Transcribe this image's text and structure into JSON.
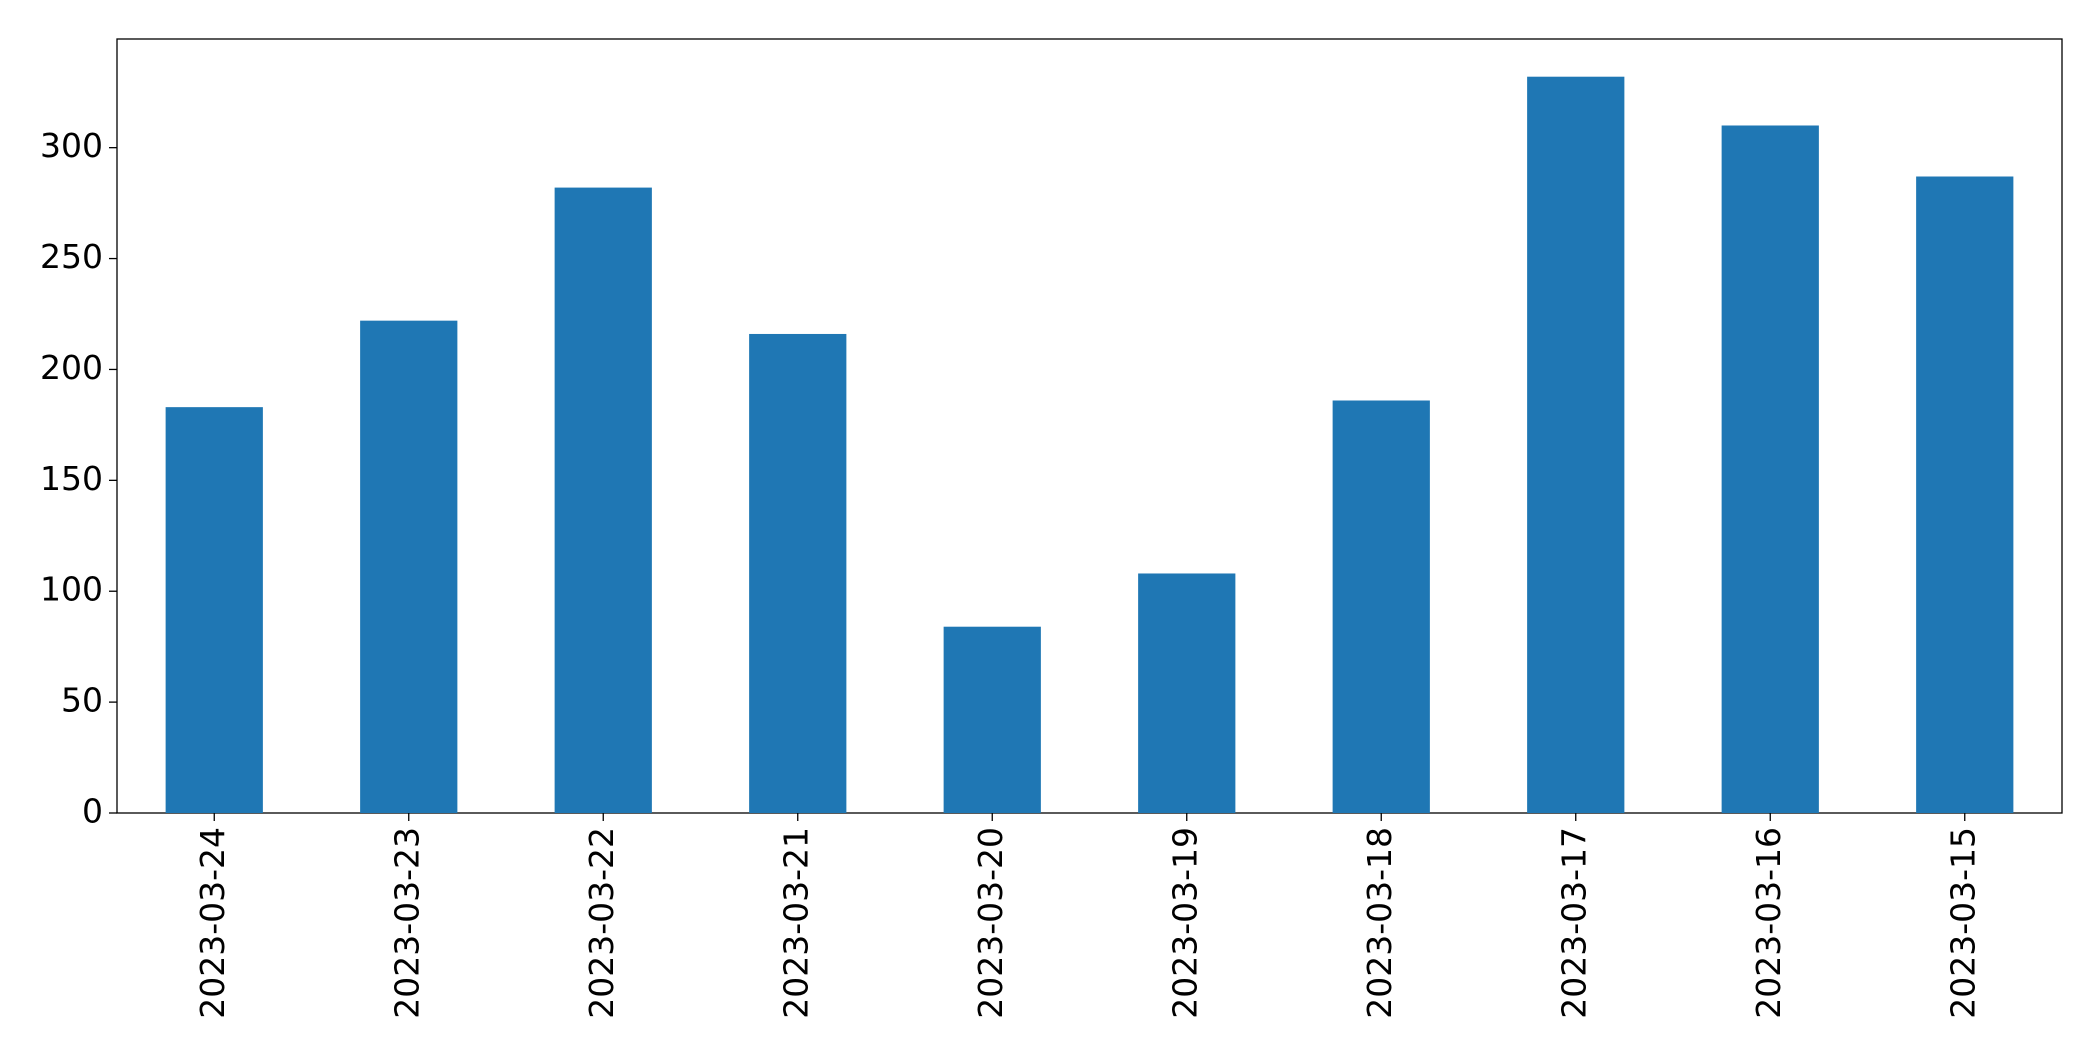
{
  "chart_data": {
    "type": "bar",
    "categories": [
      "2023-03-24",
      "2023-03-23",
      "2023-03-22",
      "2023-03-21",
      "2023-03-20",
      "2023-03-19",
      "2023-03-18",
      "2023-03-17",
      "2023-03-16",
      "2023-03-15"
    ],
    "values": [
      183,
      222,
      282,
      216,
      84,
      108,
      186,
      332,
      310,
      287
    ],
    "color": "#1f77b4",
    "ylim": [
      0,
      349
    ],
    "yticks": [
      0,
      50,
      100,
      150,
      200,
      250,
      300
    ],
    "grid": false
  }
}
